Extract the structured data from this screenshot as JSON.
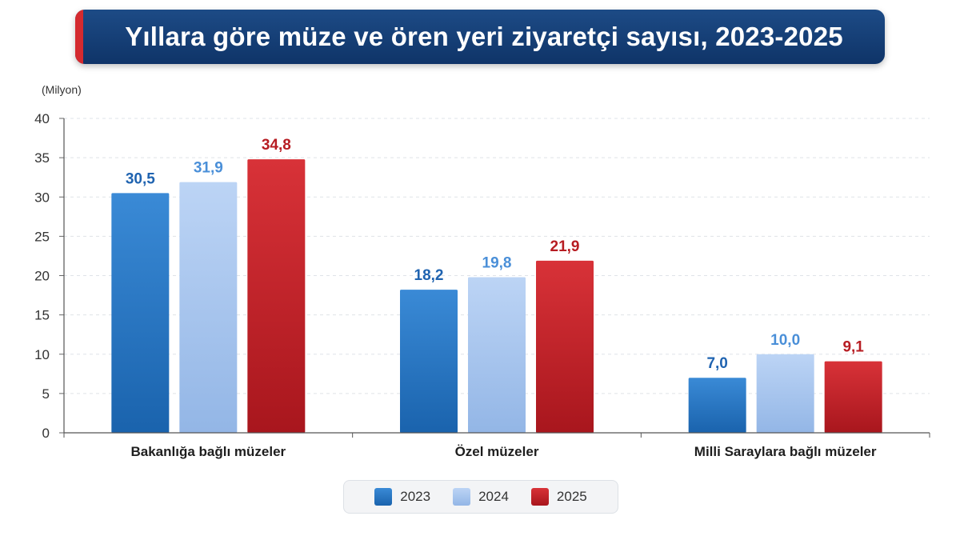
{
  "title": "Yıllara göre müze ve ören yeri ziyaretçi sayısı, 2023-2025",
  "unit": "(Milyon)",
  "colors": {
    "title_bg": "#163f78",
    "title_accent": "#d42a2f",
    "series_2023": "#2274c0",
    "series_2024": "#a7c6f0",
    "series_2025": "#c6212a",
    "label_2023": "#1f63b0",
    "label_2024": "#4a8fd8",
    "label_2025": "#b71c22"
  },
  "chart_data": {
    "type": "bar",
    "title": "Yıllara göre müze ve ören yeri ziyaretçi sayısı, 2023-2025",
    "ylabel": "(Milyon)",
    "xlabel": "",
    "ylim": [
      0,
      40
    ],
    "yticks": [
      0,
      5,
      10,
      15,
      20,
      25,
      30,
      35,
      40
    ],
    "grid": true,
    "legend": "bottom-center",
    "categories": [
      "Bakanlığa bağlı müzeler",
      "Özel müzeler",
      "Milli Saraylara bağlı müzeler"
    ],
    "series": [
      {
        "name": "2023",
        "values": [
          30.5,
          18.2,
          7.0
        ],
        "labels": [
          "30,5",
          "18,2",
          "7,0"
        ]
      },
      {
        "name": "2024",
        "values": [
          31.9,
          19.8,
          10.0
        ],
        "labels": [
          "31,9",
          "19,8",
          "10,0"
        ]
      },
      {
        "name": "2025",
        "values": [
          34.8,
          21.9,
          9.1
        ],
        "labels": [
          "34,8",
          "21,9",
          "9,1"
        ]
      }
    ]
  }
}
